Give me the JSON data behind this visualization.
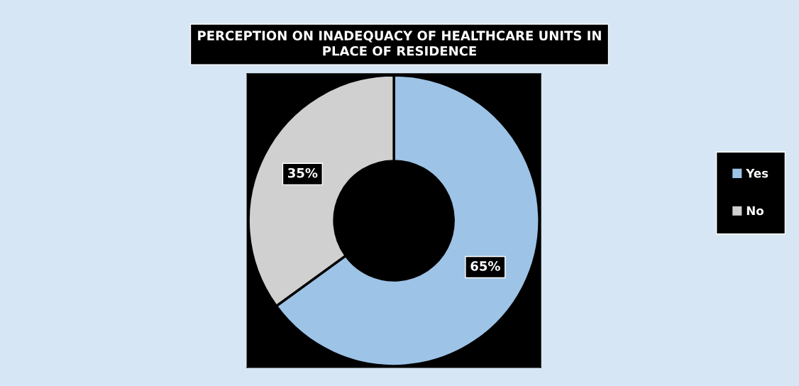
{
  "chart_data": {
    "type": "donut",
    "title": "PERCEPTION ON INADEQUACY OF HEALTHCARE UNITS IN\nPLACE OF RESIDENCE",
    "categories": [
      "Yes",
      "No"
    ],
    "values": [
      65,
      35
    ],
    "colors": [
      "#9dc3e6",
      "#d0d0d0"
    ],
    "value_labels": [
      "65%",
      "35%"
    ],
    "legend": "right"
  }
}
